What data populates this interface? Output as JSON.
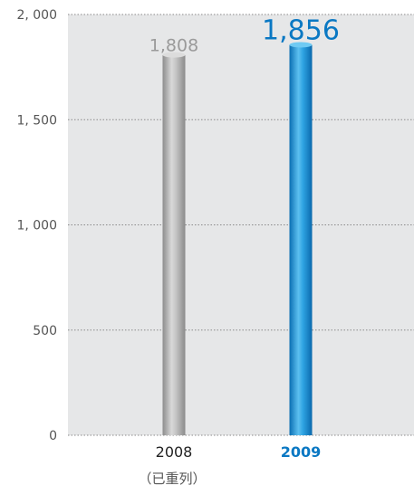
{
  "chart_data": {
    "type": "bar",
    "title": "",
    "xlabel": "",
    "ylabel": "",
    "ylim": [
      0,
      2000
    ],
    "y_ticks": [
      {
        "value": 0,
        "label": "0"
      },
      {
        "value": 500,
        "label": "500"
      },
      {
        "value": 1000,
        "label": "1, 000"
      },
      {
        "value": 1500,
        "label": "1, 500"
      },
      {
        "value": 2000,
        "label": "2, 000"
      }
    ],
    "grid": true,
    "bars": [
      {
        "category": "2008",
        "sublabel": "（已重列）",
        "value": 1808,
        "value_label": "1,808",
        "highlight": false
      },
      {
        "category": "2009",
        "sublabel": "",
        "value": 1856,
        "value_label": "1,856",
        "highlight": true
      }
    ],
    "colors": {
      "plot_background": "#e6e7e8",
      "gridline": "#8a8a8a",
      "bar_grey": "#b2b2b2",
      "bar_blue": "#1e96d6",
      "label_grey": "#9a9a9a",
      "label_blue": "#0a78c3",
      "axis_text": "#555555",
      "category_text": "#222222"
    }
  }
}
